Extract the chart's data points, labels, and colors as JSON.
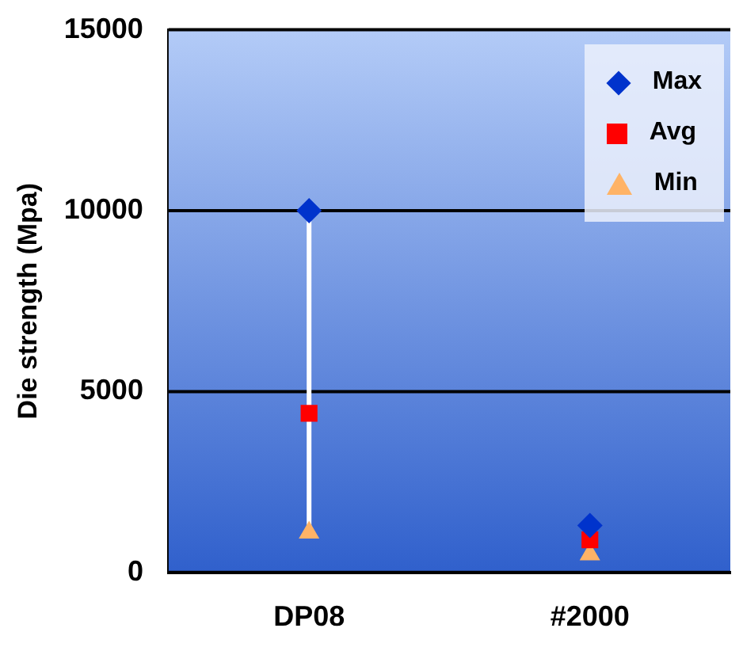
{
  "chart_data": {
    "type": "scatter",
    "ylabel": "Die strength (Mpa)",
    "categories": [
      "DP08",
      "#2000"
    ],
    "series": [
      {
        "type": "line",
        "color": "#ffffff",
        "x": [
          "DP08",
          "DP08"
        ],
        "values": [
          1100,
          10000
        ],
        "marker": "none"
      },
      {
        "name": "Max",
        "color": "#0033cc",
        "marker": "diamond",
        "values": [
          10000,
          1300
        ]
      },
      {
        "name": "Avg",
        "color": "#ff0000",
        "marker": "square",
        "values": [
          4400,
          900
        ]
      },
      {
        "name": "Min",
        "color": "#ffb366",
        "marker": "triangle",
        "values": [
          1100,
          500
        ]
      }
    ],
    "ylim": [
      0,
      15000
    ],
    "yticks": [
      0,
      5000,
      10000,
      15000
    ],
    "grid": "y",
    "legend": "top right"
  }
}
